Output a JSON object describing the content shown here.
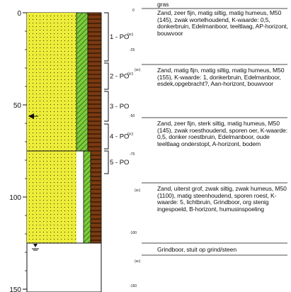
{
  "depth_axis": {
    "ticks": [
      0,
      50,
      100,
      150
    ],
    "max_depth": 150
  },
  "water_level_depth": 121,
  "column_bottom": 121,
  "layers": [
    {
      "top": 0,
      "bottom": 25,
      "fill": "yellow-dots",
      "sample": "1 - PO",
      "sample_suffix": "(sc)",
      "depth_label": "0",
      "description": "gras\nZand, zeer fijn, matig siltig, matig humeus, M50 (145), zwak wortelhoudend, K-waarde: 0,5, donkerbruin, Edelmanboor, teeltlaag, AP-horizont, bouwvoor"
    },
    {
      "top": 25,
      "bottom": 45,
      "fill": "yellow-dots",
      "sample": "2 - PO",
      "sample_suffix": "(sc)",
      "depth_label": "-25",
      "description": "Zand, matig fijn, matig siltig, matig humeus, M50 (155), K-waarde: 1, donkerbruin, Edelmanboor, esdek,opgebracht?, Aan-horizont, bouwvoor"
    },
    {
      "top": 45,
      "bottom": 60,
      "fill": "yellow-dots",
      "sample": "3 - PO",
      "sample_suffix": "",
      "depth_label": "-50",
      "description": "Zand, zeer fijn, sterk siltig, matig humeus, M50 (145), zwak roesthoudend, sporen oer, K-waarde: 0,5, donker roestbruin, Edelmanboor, oude teeltlaag onderstopt, A-horizont, bodem"
    },
    {
      "top": 60,
      "bottom": 80,
      "fill": "yellow-dots",
      "sample": "4 - PO",
      "sample_suffix": "(sc)",
      "depth_label": "-75",
      "description": "Zand, uiterst grof, zwak siltig, zwak humeus, M50 (1100), matig steenhoudend, sporen roest, K-waarde: 5, lichtbruin, Grindboor, org stenig ingespoeld, B-horizont, humusinspoeling"
    },
    {
      "top": 80,
      "bottom": 121,
      "fill": "yellow-dots",
      "sample": "5 - PO",
      "sample_suffix": "",
      "depth_label": "-100",
      "description": "Grindboor, stuit op grind/steen"
    }
  ],
  "depth_labels": [
    "0",
    "-25",
    "-50",
    "-75",
    "-100",
    "(sc)",
    "(sc)",
    "(sc)",
    "-150"
  ],
  "descriptions_text": {
    "d0": "gras",
    "d1": "Zand, zeer fijn, matig siltig, matig humeus, M50 (145), zwak wortelhoudend, K-waarde: 0,5, donkerbruin, Edelmanboor, teeltlaag, AP-horizont, bouwvoor",
    "d2": "Zand, matig fijn, matig siltig, matig humeus, M50 (155), K-waarde: 1, donkerbruin, Edelmanboor, esdek,opgebracht?, Aan-horizont, bouwvoor",
    "d3": "Zand, zeer fijn, sterk siltig, matig humeus, M50 (145), zwak roesthoudend, sporen oer, K-waarde: 0,5, donker roestbruin, Edelmanboor, oude teeltlaag onderstopt, A-horizont, bodem",
    "d4": "Zand, uiterst grof, zwak siltig, zwak humeus, M50 (1100), matig steenhoudend, sporen roest, K-waarde: 5, lichtbruin, Grindboor, org stenig ingespoeld, B-horizont, humusinspoeling",
    "d5": "Grindboor, stuit op grind/steen"
  },
  "colors": {
    "sand": "#ecec3a",
    "dots": "#333300",
    "humus_green": "#7ccc3a",
    "brown": "#7a3a10",
    "brown_stripe": "#1a0a00"
  }
}
